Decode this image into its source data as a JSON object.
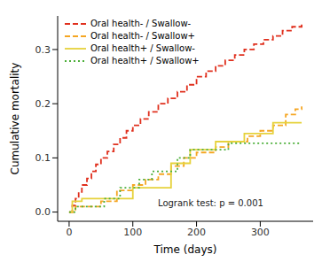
{
  "chart_data": {
    "type": "line",
    "xlabel": "Time (days)",
    "ylabel": "Cumulative mortality",
    "annotation": "Logrank test: p = 0.001",
    "legend": "upper left",
    "xlim": [
      -18,
      383
    ],
    "ylim": [
      -0.017,
      0.362
    ],
    "xticks": [
      0,
      100,
      200,
      300
    ],
    "yticks": [
      {
        "value": 0,
        "label": "0.0"
      },
      0.1,
      0.2,
      0.3
    ],
    "series": [
      {
        "name": "Oral health- / Swallow-",
        "color": "#e0301e",
        "line_style": "dashed",
        "x": [
          0,
          5,
          10,
          15,
          20,
          28,
          35,
          42,
          50,
          60,
          70,
          80,
          90,
          100,
          112,
          125,
          140,
          155,
          170,
          185,
          200,
          215,
          230,
          245,
          260,
          275,
          290,
          305,
          320,
          335,
          350,
          365
        ],
        "values": [
          0,
          0.012,
          0.025,
          0.037,
          0.05,
          0.062,
          0.075,
          0.088,
          0.1,
          0.112,
          0.125,
          0.137,
          0.15,
          0.16,
          0.172,
          0.185,
          0.2,
          0.21,
          0.222,
          0.235,
          0.25,
          0.26,
          0.27,
          0.28,
          0.29,
          0.3,
          0.31,
          0.318,
          0.325,
          0.335,
          0.342,
          0.348
        ]
      },
      {
        "name": "Oral health- / Swallow+",
        "color": "#f5a623",
        "line_style": "dashed",
        "x": [
          0,
          10,
          50,
          75,
          100,
          120,
          140,
          160,
          180,
          200,
          230,
          250,
          280,
          300,
          320,
          340,
          355,
          365
        ],
        "values": [
          0,
          0.01,
          0.02,
          0.04,
          0.05,
          0.06,
          0.07,
          0.085,
          0.1,
          0.11,
          0.12,
          0.13,
          0.14,
          0.15,
          0.16,
          0.18,
          0.19,
          0.195
        ]
      },
      {
        "name": "Oral health+ / Swallow-",
        "color": "#e6d23c",
        "line_style": "solid",
        "x": [
          0,
          5,
          20,
          100,
          160,
          190,
          230,
          275,
          320,
          365
        ],
        "values": [
          0,
          0.02,
          0.025,
          0.045,
          0.09,
          0.115,
          0.13,
          0.145,
          0.165,
          0.165
        ]
      },
      {
        "name": "Oral health+ / Swallow+",
        "color": "#4caf3a",
        "line_style": "dotted",
        "x": [
          0,
          10,
          55,
          80,
          110,
          130,
          170,
          190,
          250,
          365
        ],
        "values": [
          0,
          0.01,
          0.025,
          0.045,
          0.06,
          0.075,
          0.1,
          0.115,
          0.127,
          0.127
        ]
      }
    ]
  }
}
